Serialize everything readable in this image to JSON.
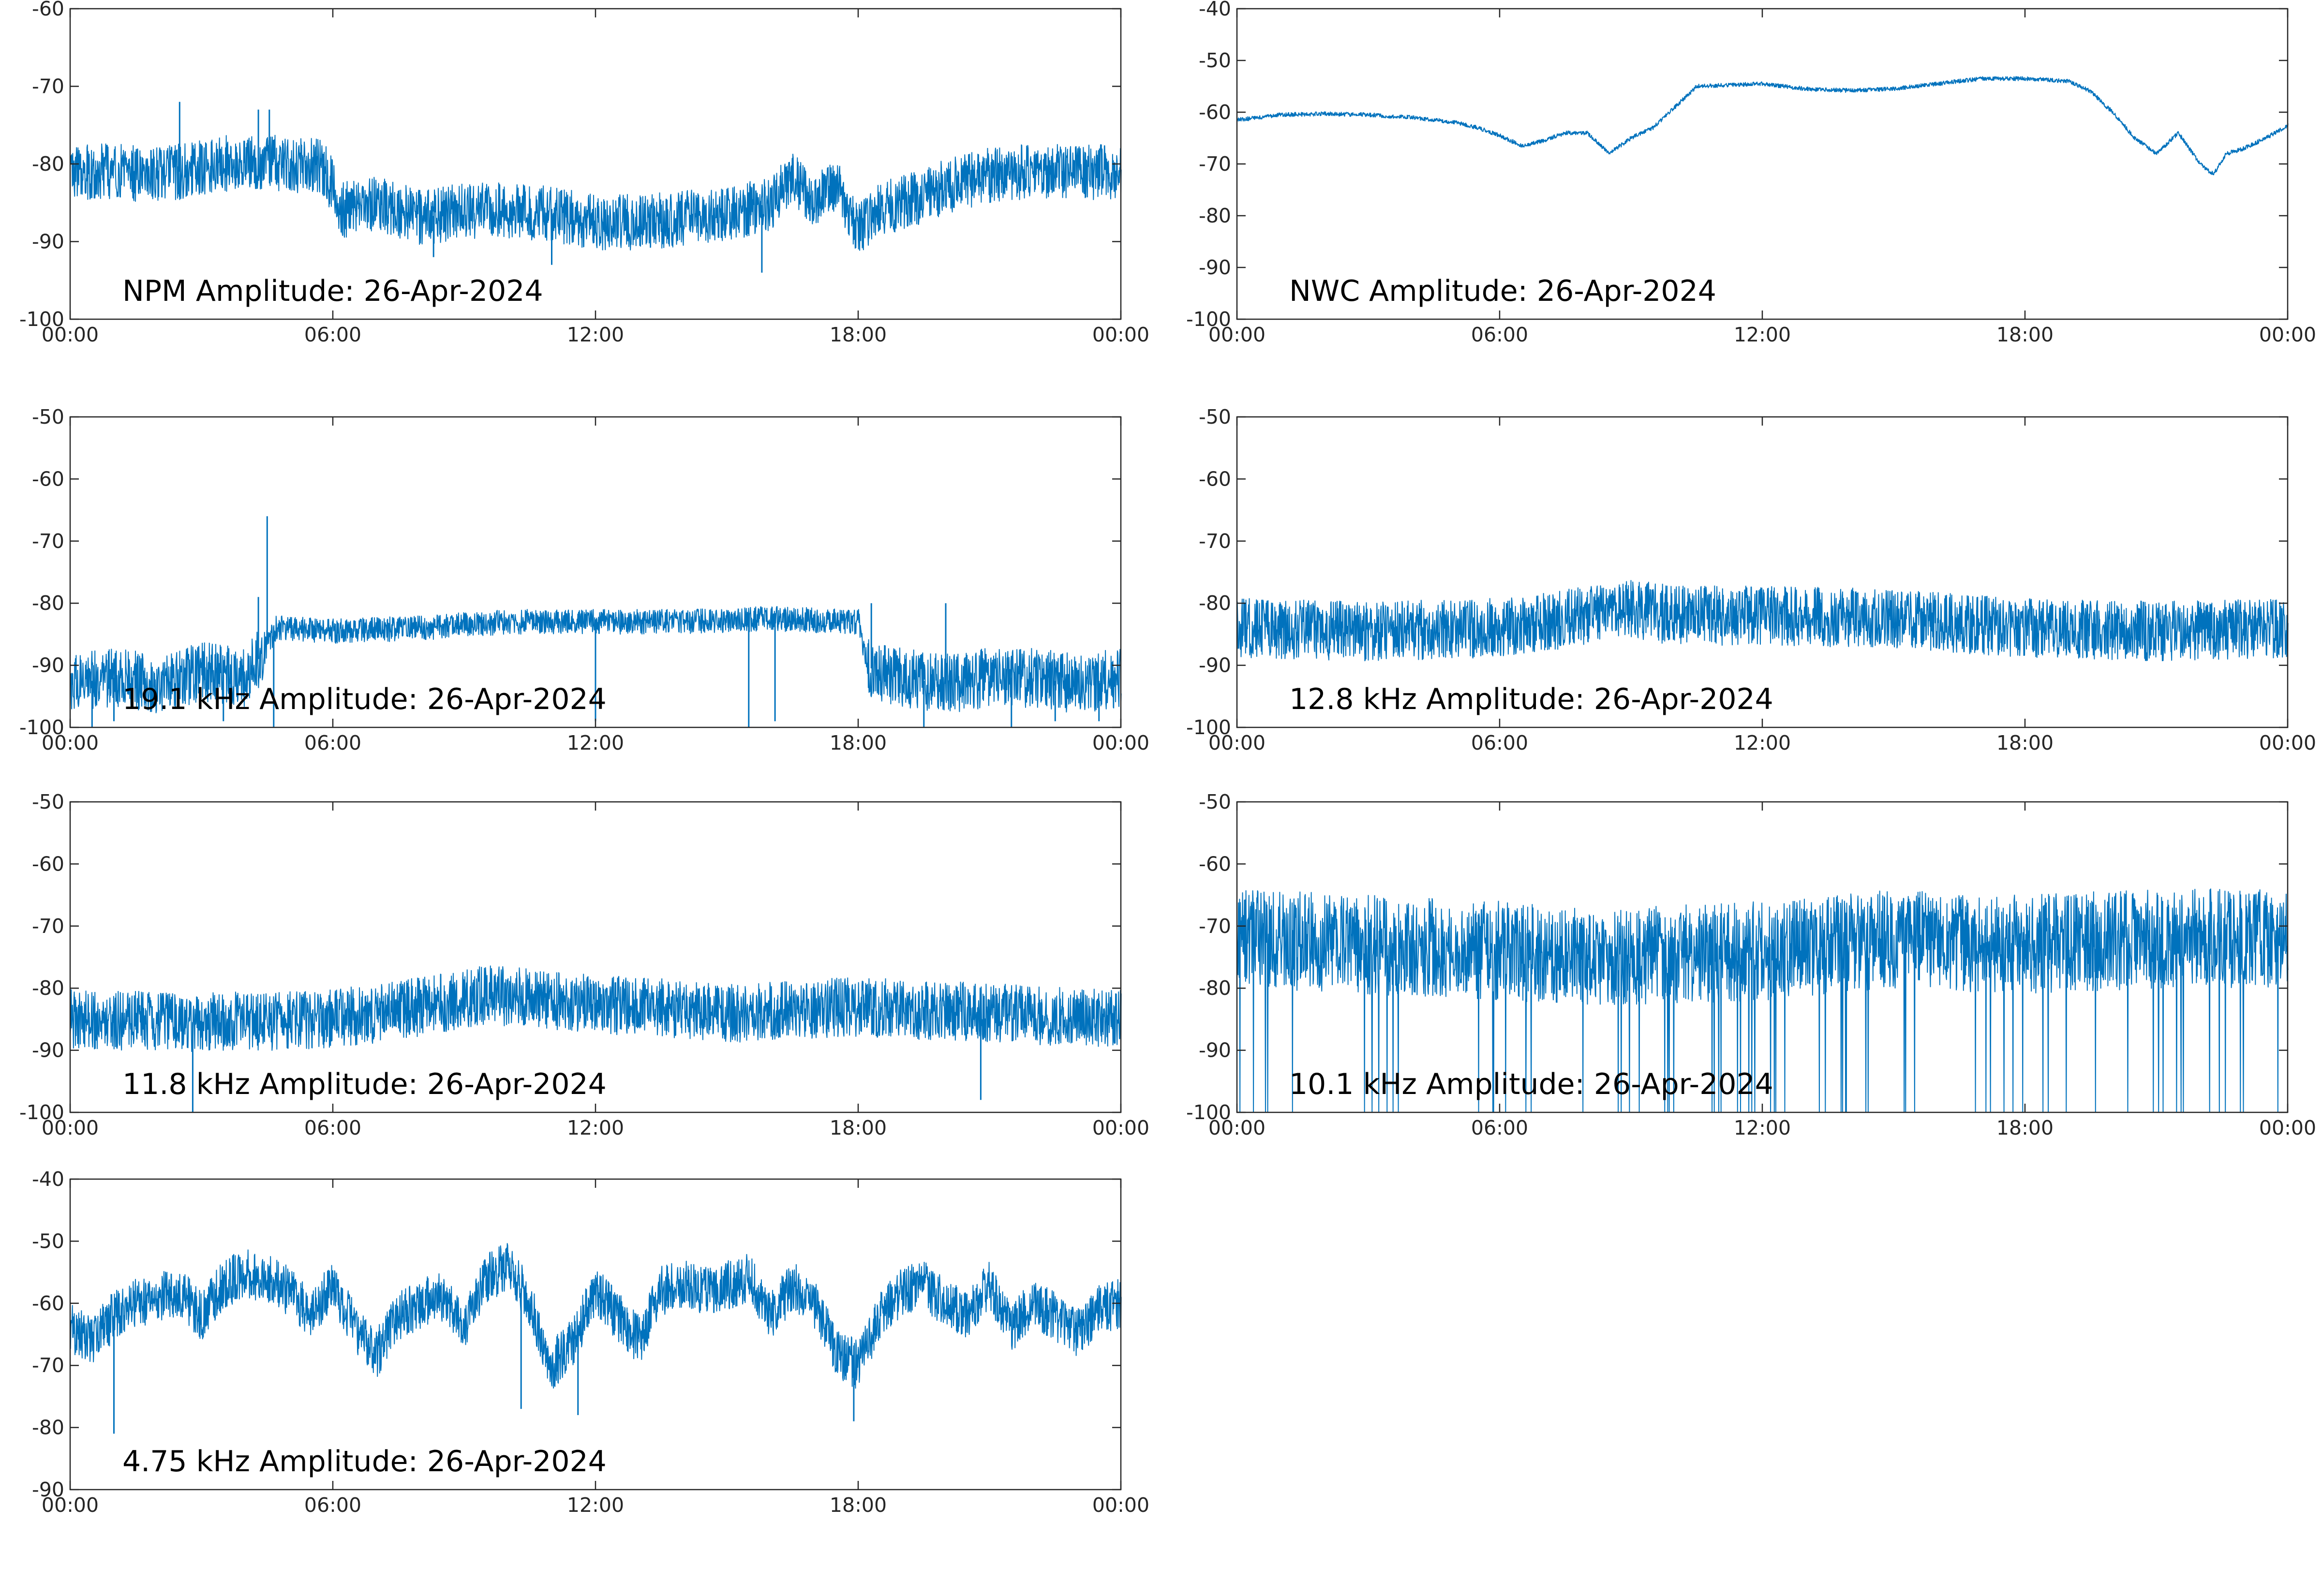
{
  "figure": {
    "background": "#ffffff",
    "trace_color": "#0072bd"
  },
  "chart_data": [
    {
      "type": "line",
      "title": "NPM Amplitude: 26-Apr-2024",
      "xticks": [
        "00:00",
        "06:00",
        "12:00",
        "18:00",
        "00:00"
      ],
      "xlim": [
        0,
        24
      ],
      "ylim": [
        -100,
        -60
      ],
      "yticks": [
        -100,
        -90,
        -80,
        -70,
        -60
      ],
      "grid": false,
      "noise": 4.5,
      "spikes": [
        [
          2.5,
          -72
        ],
        [
          4.3,
          -73
        ],
        [
          4.55,
          -73
        ],
        [
          8.3,
          -92
        ],
        [
          11.0,
          -93
        ],
        [
          15.8,
          -94
        ]
      ],
      "series": [
        {
          "x": [
            0,
            1,
            2,
            3,
            4,
            5,
            5.8,
            6.2,
            7,
            8,
            9,
            10,
            11,
            12,
            13,
            14,
            15,
            16,
            16.5,
            17,
            17.5,
            18,
            18.5,
            19,
            20,
            21,
            22,
            23,
            24
          ],
          "y": [
            -81,
            -81,
            -81.5,
            -80.5,
            -79.5,
            -80,
            -80.5,
            -86,
            -85,
            -87,
            -86,
            -86,
            -86.5,
            -87.5,
            -87.5,
            -87,
            -86.5,
            -85,
            -82,
            -85,
            -83,
            -88,
            -86,
            -85,
            -83,
            -81.5,
            -81,
            -81,
            -81
          ]
        }
      ]
    },
    {
      "type": "line",
      "title": "NWC Amplitude: 26-Apr-2024",
      "xticks": [
        "00:00",
        "06:00",
        "12:00",
        "18:00",
        "00:00"
      ],
      "xlim": [
        0,
        24
      ],
      "ylim": [
        -100,
        -40
      ],
      "yticks": [
        -100,
        -90,
        -80,
        -70,
        -60,
        -50,
        -40
      ],
      "grid": false,
      "noise": 0.5,
      "spikes": [],
      "series": [
        {
          "x": [
            0,
            0.5,
            1,
            2,
            3,
            4,
            5,
            5.5,
            6,
            6.5,
            7,
            7.5,
            8,
            8.5,
            9,
            9.5,
            10,
            10.5,
            11,
            12,
            13,
            14,
            15,
            16,
            17,
            18,
            19,
            19.5,
            20,
            20.5,
            21,
            21.5,
            22,
            22.3,
            22.6,
            23,
            23.5,
            24
          ],
          "y": [
            -61.5,
            -61,
            -60.5,
            -60.3,
            -60.5,
            -61,
            -62,
            -63,
            -64.5,
            -66.5,
            -65.5,
            -64,
            -64,
            -68,
            -65,
            -63,
            -59,
            -55,
            -54.8,
            -54.5,
            -55.5,
            -55.8,
            -55.5,
            -54.5,
            -53.5,
            -53.5,
            -54,
            -56,
            -60,
            -65,
            -68,
            -64,
            -70,
            -72,
            -68,
            -67,
            -65,
            -62.5
          ]
        }
      ]
    },
    {
      "type": "line",
      "title": "19.1 kHz Amplitude: 26-Apr-2024",
      "xticks": [
        "00:00",
        "06:00",
        "12:00",
        "18:00",
        "00:00"
      ],
      "xlim": [
        0,
        24
      ],
      "ylim": [
        -100,
        -50
      ],
      "yticks": [
        -100,
        -90,
        -80,
        -70,
        -60,
        -50
      ],
      "grid": false,
      "noise": 2.5,
      "spikes": [
        [
          4.5,
          -66
        ],
        [
          4.3,
          -79
        ],
        [
          4.65,
          -100
        ],
        [
          0.5,
          -100
        ],
        [
          1.0,
          -99
        ],
        [
          3.5,
          -99
        ],
        [
          12.0,
          -99
        ],
        [
          15.5,
          -100
        ],
        [
          16.1,
          -99
        ],
        [
          19.5,
          -100
        ],
        [
          21.5,
          -100
        ],
        [
          22.5,
          -99
        ],
        [
          23.5,
          -99
        ],
        [
          18.3,
          -80
        ],
        [
          20.0,
          -80
        ]
      ],
      "series": [
        {
          "x": [
            0,
            1,
            2,
            3,
            4,
            4.4,
            4.7,
            4.9,
            6,
            8,
            10,
            12,
            14,
            16,
            18,
            18.2,
            18.4,
            19,
            20,
            21,
            22,
            23,
            24
          ],
          "y": [
            -93,
            -92,
            -93,
            -91,
            -92,
            -88,
            -84,
            -84,
            -84.5,
            -84,
            -83,
            -83,
            -83,
            -82.5,
            -83,
            -90,
            -91,
            -92,
            -93,
            -92,
            -92,
            -93,
            -92
          ]
        }
      ],
      "noise_segments": [
        [
          0,
          4.5,
          6
        ],
        [
          18.2,
          24,
          6
        ]
      ]
    },
    {
      "type": "line",
      "title": "12.8 kHz Amplitude: 26-Apr-2024",
      "xticks": [
        "00:00",
        "06:00",
        "12:00",
        "18:00",
        "00:00"
      ],
      "xlim": [
        0,
        24
      ],
      "ylim": [
        -100,
        -50
      ],
      "yticks": [
        -100,
        -90,
        -80,
        -70,
        -60,
        -50
      ],
      "grid": false,
      "noise": 6,
      "spikes": [],
      "series": [
        {
          "x": [
            0,
            3,
            6,
            8,
            9,
            10,
            12,
            15,
            18,
            21,
            24
          ],
          "y": [
            -84,
            -84.5,
            -84,
            -82,
            -81,
            -82,
            -82,
            -82.5,
            -84,
            -84.5,
            -84
          ]
        }
      ]
    },
    {
      "type": "line",
      "title": "11.8 kHz Amplitude: 26-Apr-2024",
      "xticks": [
        "00:00",
        "06:00",
        "12:00",
        "18:00",
        "00:00"
      ],
      "xlim": [
        0,
        24
      ],
      "ylim": [
        -100,
        -50
      ],
      "yticks": [
        -100,
        -90,
        -80,
        -70,
        -60,
        -50
      ],
      "grid": false,
      "noise": 6,
      "spikes": [
        [
          2.8,
          -100
        ],
        [
          20.8,
          -98
        ]
      ],
      "series": [
        {
          "x": [
            0,
            3,
            6,
            8,
            9.5,
            11,
            13,
            15,
            18,
            21,
            24
          ],
          "y": [
            -85,
            -85.5,
            -85,
            -83,
            -81,
            -82,
            -83,
            -84,
            -83,
            -84,
            -85
          ]
        }
      ]
    },
    {
      "type": "line",
      "title": "10.1 kHz Amplitude: 26-Apr-2024",
      "xticks": [
        "00:00",
        "06:00",
        "12:00",
        "18:00",
        "00:00"
      ],
      "xlim": [
        0,
        24
      ],
      "ylim": [
        -100,
        -50
      ],
      "yticks": [
        -100,
        -90,
        -80,
        -70,
        -60,
        -50
      ],
      "grid": false,
      "noise": 10,
      "spikes": [],
      "dropouts": 0.06,
      "series": [
        {
          "x": [
            0,
            3,
            6,
            9,
            12,
            15,
            18,
            21,
            24
          ],
          "y": [
            -72,
            -73,
            -74,
            -75,
            -74,
            -72,
            -73,
            -72,
            -72
          ]
        }
      ]
    },
    {
      "type": "line",
      "title": "4.75 kHz Amplitude: 26-Apr-2024",
      "xticks": [
        "00:00",
        "06:00",
        "12:00",
        "18:00",
        "00:00"
      ],
      "xlim": [
        0,
        24
      ],
      "ylim": [
        -90,
        -40
      ],
      "yticks": [
        -90,
        -80,
        -70,
        -60,
        -50,
        -40
      ],
      "grid": false,
      "noise": 5,
      "spikes": [
        [
          1.0,
          -81
        ],
        [
          9.5,
          -58
        ],
        [
          10.3,
          -77
        ],
        [
          11.6,
          -78
        ],
        [
          17.9,
          -79
        ]
      ],
      "series": [
        {
          "x": [
            0,
            0.5,
            1,
            1.5,
            2,
            2.5,
            3,
            3.5,
            4,
            4.5,
            5,
            5.5,
            6,
            6.5,
            7,
            7.5,
            8,
            8.5,
            9,
            9.5,
            10,
            10.5,
            11,
            11.5,
            12,
            12.5,
            13,
            13.5,
            14,
            14.5,
            15,
            15.5,
            16,
            16.5,
            17,
            17.5,
            18,
            18.5,
            19,
            19.5,
            20,
            20.5,
            21,
            21.5,
            22,
            22.5,
            23,
            23.5,
            24
          ],
          "y": [
            -64,
            -66,
            -62,
            -60,
            -59,
            -58,
            -62,
            -57,
            -55,
            -56,
            -58,
            -62,
            -57,
            -64,
            -68,
            -62,
            -60,
            -59,
            -64,
            -56,
            -54,
            -60,
            -70,
            -66,
            -58,
            -62,
            -66,
            -58,
            -57,
            -58,
            -57,
            -56,
            -62,
            -57,
            -60,
            -68,
            -70,
            -62,
            -58,
            -57,
            -60,
            -62,
            -57,
            -64,
            -60,
            -62,
            -65,
            -61,
            -60
          ]
        }
      ]
    }
  ]
}
